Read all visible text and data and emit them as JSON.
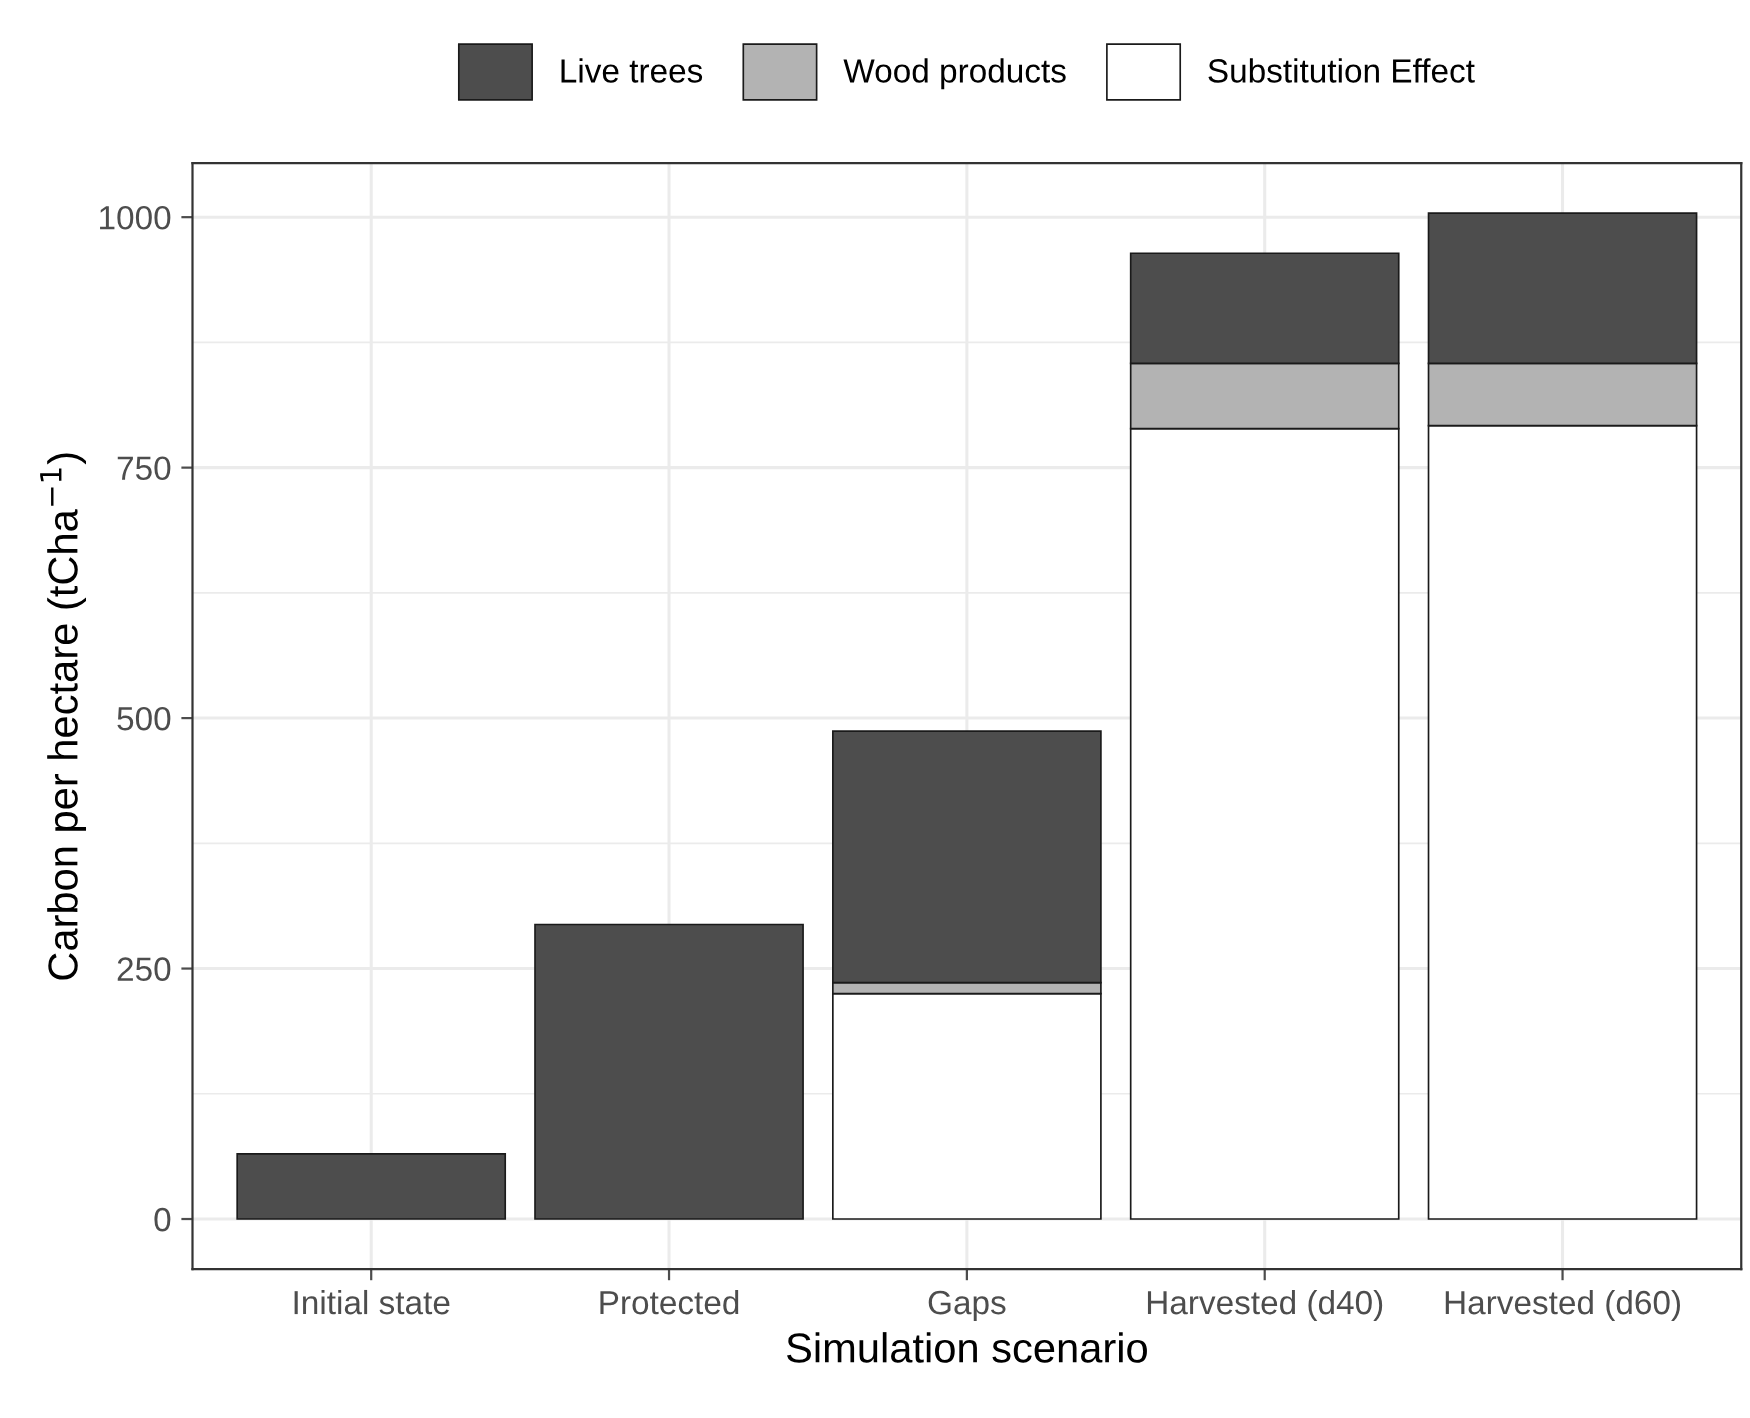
{
  "chart_data": {
    "type": "bar",
    "stacked": true,
    "xlabel": "Simulation scenario",
    "ylabel": "Carbon per hectare (tCha$^{−1}$)",
    "categories": [
      "Initial state",
      "Protected",
      "Gaps",
      "Harvested (d40)",
      "Harvested (d60)"
    ],
    "series": [
      {
        "name": "Substitution Effect",
        "color": "#ffffff",
        "values": [
          null,
          null,
          225,
          789,
          792
        ]
      },
      {
        "name": "Wood products",
        "color": "#b3b3b3",
        "values": [
          null,
          null,
          11,
          65,
          62
        ]
      },
      {
        "name": "Live trees",
        "color": "#4d4d4d",
        "values": [
          65,
          294,
          251,
          110,
          150
        ]
      }
    ],
    "ylim": [
      -50,
      1054
    ],
    "yticks": [
      0,
      250,
      500,
      750,
      1000
    ],
    "grid": true,
    "legend": "top"
  }
}
